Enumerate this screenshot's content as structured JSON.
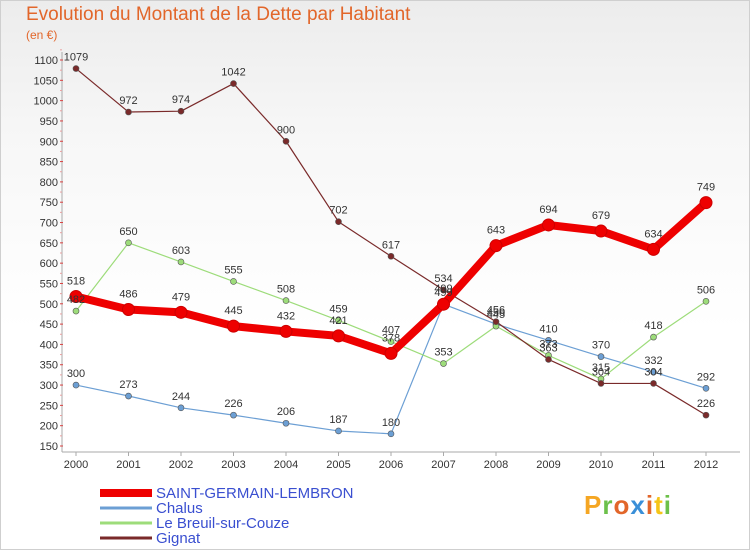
{
  "header": {
    "title": "Evolution du Montant de la Dette par Habitant",
    "unit": "(en €)"
  },
  "logo": {
    "text": "Proxiti"
  },
  "chart_data": {
    "type": "line",
    "title": "Evolution du Montant de la Dette par Habitant",
    "subtitle": "(en €)",
    "x": [
      2000,
      2001,
      2002,
      2003,
      2004,
      2005,
      2006,
      2007,
      2008,
      2009,
      2010,
      2011,
      2012
    ],
    "xlabels": [
      "2000",
      "2001",
      "2002",
      "2003",
      "2004",
      "2005",
      "2006",
      "2007",
      "2008",
      "2009",
      "2010",
      "2011",
      "2012"
    ],
    "ylim": [
      150,
      1100
    ],
    "yticks": [
      150,
      200,
      250,
      300,
      350,
      400,
      450,
      500,
      550,
      600,
      650,
      700,
      750,
      800,
      850,
      900,
      950,
      1000,
      1050,
      1100
    ],
    "grid": false,
    "legend": "bottom-left",
    "series": [
      {
        "name": "SAINT-GERMAIN-LEMBRON",
        "color": "#ee0000",
        "width": 8,
        "values": [
          518,
          486,
          479,
          445,
          432,
          421,
          378,
          499,
          643,
          694,
          679,
          634,
          749
        ]
      },
      {
        "name": "Chalus",
        "color": "#6c9fd4",
        "width": 1.2,
        "values": [
          300,
          273,
          244,
          226,
          206,
          187,
          180,
          499,
          450,
          410,
          370,
          332,
          292
        ]
      },
      {
        "name": "Le Breuil-sur-Couze",
        "color": "#9ddc7a",
        "width": 1.2,
        "values": [
          482,
          650,
          603,
          555,
          508,
          459,
          407,
          353,
          445,
          373,
          315,
          418,
          506
        ]
      },
      {
        "name": "Gignat",
        "color": "#7a2a2a",
        "width": 1.2,
        "values": [
          1079,
          972,
          974,
          1042,
          900,
          702,
          617,
          534,
          456,
          363,
          304,
          304,
          226
        ]
      }
    ]
  }
}
